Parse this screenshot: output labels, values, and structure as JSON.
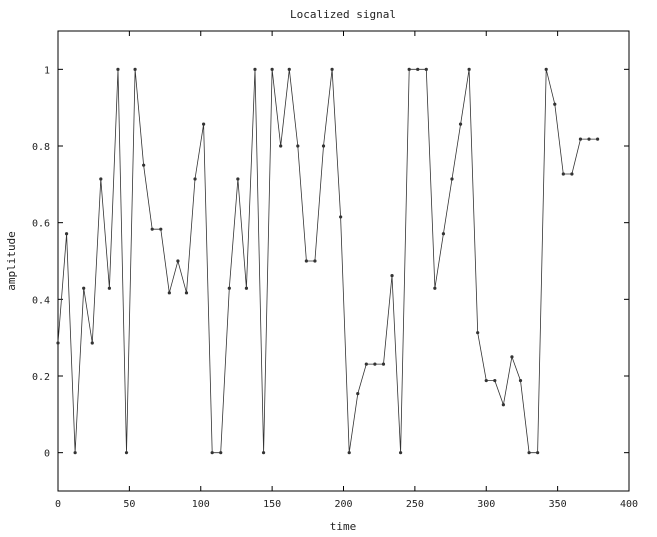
{
  "chart_data": {
    "type": "line",
    "title": "Localized signal",
    "xlabel": "time",
    "ylabel": "amplitude",
    "xlim": [
      0,
      400
    ],
    "ylim": [
      -0.1,
      1.1
    ],
    "xticks": [
      0,
      50,
      100,
      150,
      200,
      250,
      300,
      350,
      400
    ],
    "yticks": [
      0,
      0.2,
      0.4,
      0.6,
      0.8,
      1
    ],
    "xtick_labels": [
      "0",
      "50",
      "100",
      "150",
      "200",
      "250",
      "300",
      "350",
      "400"
    ],
    "ytick_labels": [
      "0",
      "0.2",
      "0.4",
      "0.6",
      "0.8",
      "1"
    ],
    "grid": false,
    "legend": "none",
    "series": [
      {
        "color": "#333333",
        "marker": "dot",
        "x": [
          0,
          6,
          12,
          18,
          24,
          30,
          36,
          42,
          48,
          54,
          60,
          66,
          72,
          78,
          84,
          90,
          96,
          102,
          108,
          114,
          120,
          126,
          132,
          138,
          144,
          150,
          156,
          162,
          168,
          174,
          180,
          186,
          192,
          198,
          204,
          210,
          216,
          222,
          228,
          234,
          240,
          246,
          252,
          258,
          264,
          270,
          276,
          282,
          288,
          294,
          300,
          306,
          312,
          318,
          324,
          330,
          336,
          342,
          348,
          354,
          360,
          366,
          372,
          378
        ],
        "y": [
          0.286,
          0.571,
          0,
          0.429,
          0.286,
          0.714,
          0.429,
          1,
          0,
          1,
          0.75,
          0.583,
          0.583,
          0.417,
          0.5,
          0.417,
          0.714,
          0.857,
          0,
          0,
          0.429,
          0.714,
          0.429,
          1,
          0,
          1,
          0.8,
          1,
          0.8,
          0.5,
          0.5,
          0.8,
          1,
          0.615,
          0,
          0.154,
          0.231,
          0.231,
          0.231,
          0.462,
          0,
          1,
          1,
          1,
          0.429,
          0.571,
          0.714,
          0.857,
          1,
          0.313,
          0.188,
          0.188,
          0.125,
          0.25,
          0.188,
          0,
          0,
          1,
          0.909,
          0.727,
          0.727,
          0.818,
          0.818,
          0.818
        ]
      }
    ]
  }
}
